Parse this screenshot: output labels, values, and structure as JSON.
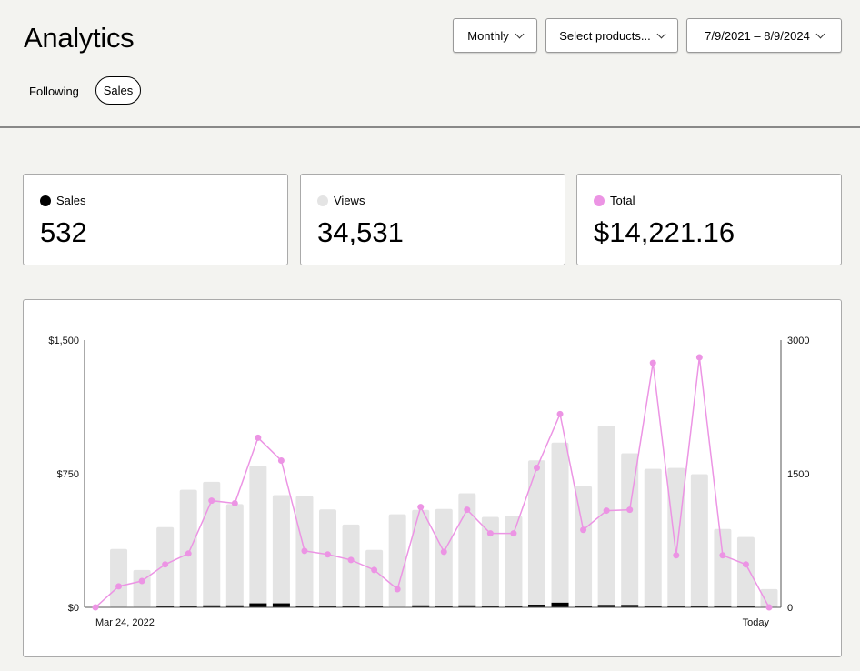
{
  "header": {
    "title": "Analytics"
  },
  "tabs": [
    {
      "label": "Following"
    },
    {
      "label": "Sales"
    }
  ],
  "filters": {
    "period": "Monthly",
    "products_placeholder": "Select products...",
    "date_range": "7/9/2021 – 8/9/2024"
  },
  "stats": [
    {
      "label": "Sales",
      "value": "532",
      "color": "#000000"
    },
    {
      "label": "Views",
      "value": "34,531",
      "color": "#e4e4e4"
    },
    {
      "label": "Total",
      "value": "$14,221.16",
      "color": "#ec94e4"
    }
  ],
  "chart_data": {
    "type": "bar",
    "x_start_label": "Mar 24, 2022",
    "x_end_label": "Today",
    "left_axis": {
      "ticks": [
        "$0",
        "$750",
        "$1,500"
      ],
      "range": [
        0,
        1500
      ]
    },
    "right_axis": {
      "ticks": [
        "0",
        "1500",
        "3000"
      ],
      "range": [
        0,
        3000
      ]
    },
    "series": [
      {
        "name": "Views",
        "type": "bar",
        "axis": "right",
        "color": "#e4e4e4",
        "values": [
          0,
          655,
          420,
          900,
          1320,
          1410,
          1160,
          1590,
          1260,
          1250,
          1100,
          930,
          645,
          1045,
          1095,
          1105,
          1280,
          1015,
          1025,
          1650,
          1850,
          1360,
          2040,
          1730,
          1555,
          1565,
          1495,
          880,
          790,
          205
        ]
      },
      {
        "name": "Sales",
        "type": "bar",
        "axis": "right",
        "color": "#000000",
        "values": [
          0,
          0,
          0,
          5,
          10,
          15,
          15,
          30,
          30,
          10,
          8,
          8,
          5,
          0,
          15,
          10,
          15,
          8,
          10,
          20,
          35,
          12,
          18,
          18,
          12,
          12,
          12,
          5,
          5,
          0
        ]
      },
      {
        "name": "Total",
        "type": "line",
        "axis": "left",
        "color": "#ec94e4",
        "values": [
          0,
          118,
          148,
          241,
          302,
          599,
          584,
          952,
          824,
          317,
          297,
          266,
          210,
          102,
          563,
          312,
          548,
          415,
          415,
          783,
          1085,
          435,
          543,
          548,
          1372,
          292,
          1403,
          292,
          241,
          0
        ]
      }
    ]
  }
}
